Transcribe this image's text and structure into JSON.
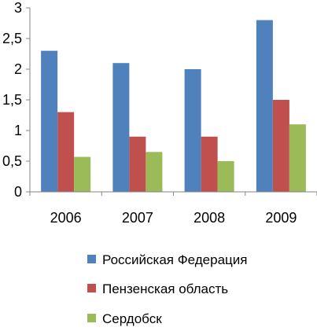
{
  "chart_data": {
    "type": "bar",
    "title": "",
    "xlabel": "",
    "ylabel": "",
    "categories": [
      "2006",
      "2007",
      "2008",
      "2009"
    ],
    "series": [
      {
        "name": "Российская Федерация",
        "color": "#4F81BD",
        "values": [
          2.3,
          2.1,
          2.0,
          2.8
        ]
      },
      {
        "name": "Пензенская область",
        "color": "#C0504D",
        "values": [
          1.3,
          0.9,
          0.9,
          1.5
        ]
      },
      {
        "name": "Сердобск",
        "color": "#9BBB59",
        "values": [
          0.57,
          0.65,
          0.5,
          1.1
        ]
      }
    ],
    "ylim": [
      0,
      3
    ],
    "yticks": [
      "0",
      "0,5",
      "1",
      "1,5",
      "2",
      "2,5",
      "3"
    ],
    "grid": false,
    "legend_position": "bottom"
  }
}
